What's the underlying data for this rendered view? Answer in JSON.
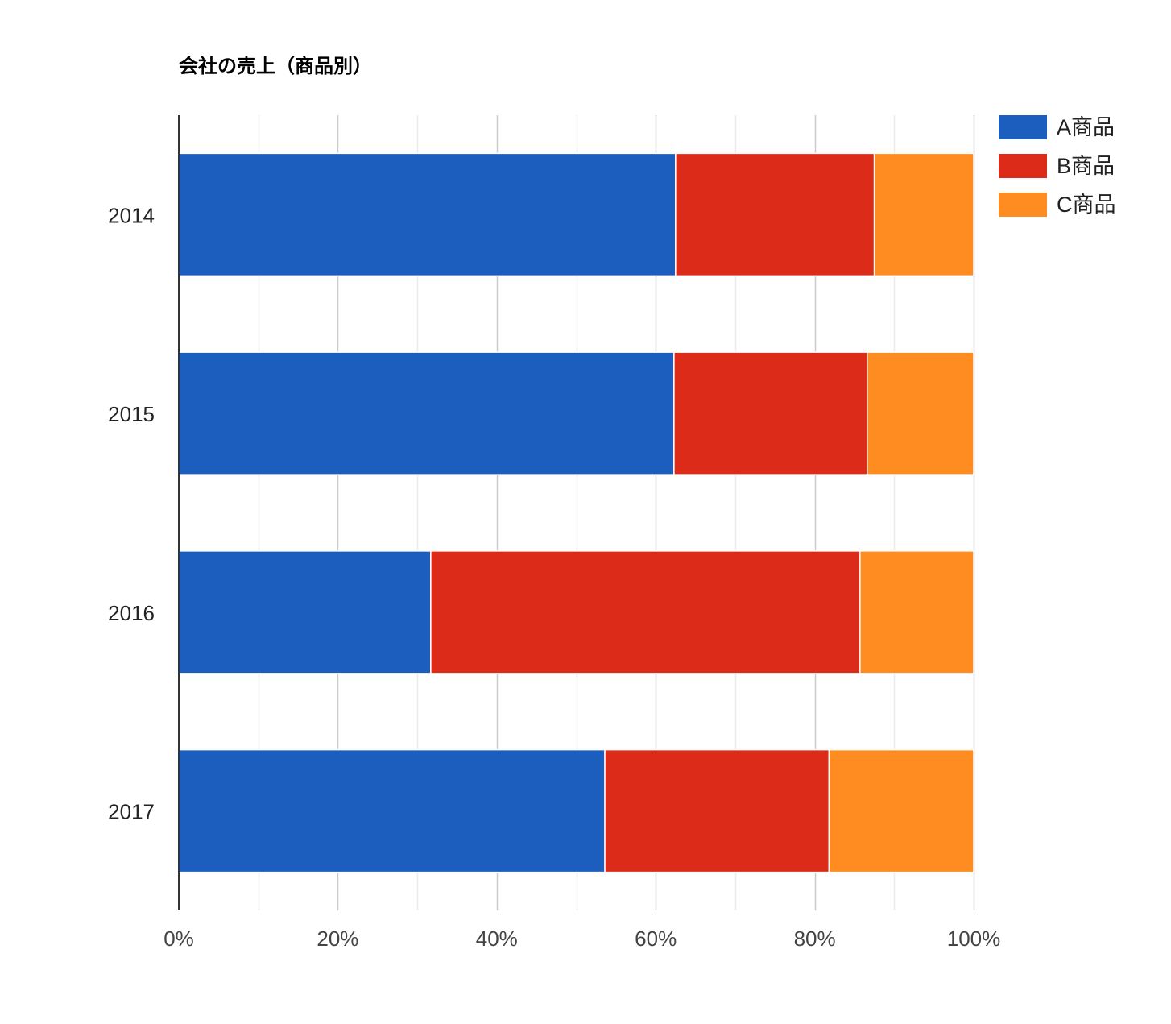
{
  "chart_data": {
    "type": "bar",
    "orientation": "horizontal",
    "stacked": "percent",
    "title": "会社の売上（商品別）",
    "xlabel": "",
    "ylabel": "",
    "categories": [
      "2014",
      "2015",
      "2016",
      "2017"
    ],
    "series": [
      {
        "name": "A商品",
        "color": "#1b5ebe",
        "values": [
          62.5,
          62.3,
          31.7,
          53.6
        ]
      },
      {
        "name": "B商品",
        "color": "#dc2c19",
        "values": [
          25.0,
          24.3,
          54.0,
          28.2
        ]
      },
      {
        "name": "C商品",
        "color": "#ff8c21",
        "values": [
          12.5,
          13.4,
          14.3,
          18.2
        ]
      }
    ],
    "xlim": [
      0,
      100
    ],
    "x_ticks": [
      "0%",
      "20%",
      "40%",
      "60%",
      "80%",
      "100%"
    ],
    "grid": true,
    "legend_position": "top-right"
  }
}
